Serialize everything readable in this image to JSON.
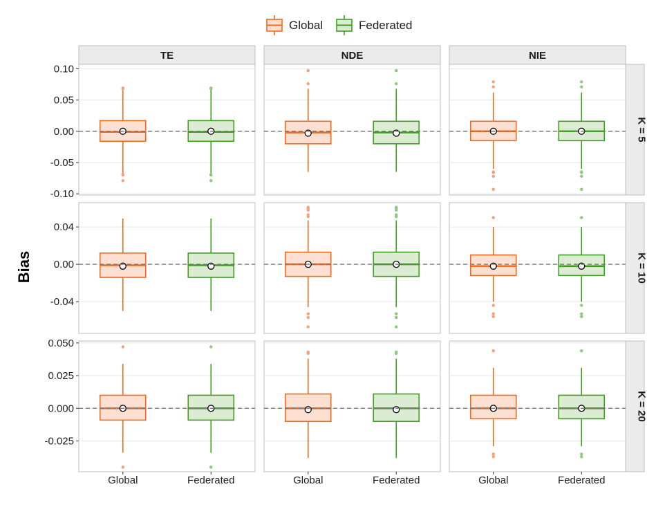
{
  "chart_data": {
    "type": "boxplot",
    "ylabel": "Bias",
    "legend": {
      "position": "top",
      "items": [
        {
          "label": "Global",
          "color": "#f26b1d",
          "fill": "#fde0d2"
        },
        {
          "label": "Federated",
          "color": "#3f9f1e",
          "fill": "#dcecd3"
        }
      ]
    },
    "columns": [
      "TE",
      "NDE",
      "NIE"
    ],
    "rows": [
      "K = 5",
      "K = 10",
      "K = 20"
    ],
    "categories": [
      "Global",
      "Federated"
    ],
    "reference_line": 0,
    "row_axes": [
      {
        "ylim": [
          -0.102,
          0.107
        ],
        "ticks": [
          0.1,
          0.05,
          0.0,
          -0.05,
          -0.1
        ],
        "tick_labels": [
          "0.10",
          "0.05",
          "0.00",
          "-0.05",
          "-0.10"
        ]
      },
      {
        "ylim": [
          -0.074,
          0.066
        ],
        "ticks": [
          0.04,
          0.0,
          -0.04
        ],
        "tick_labels": [
          "0.04",
          "0.00",
          "-0.04"
        ]
      },
      {
        "ylim": [
          -0.0485,
          0.0515
        ],
        "ticks": [
          0.05,
          0.025,
          0.0,
          -0.025
        ],
        "tick_labels": [
          "0.050",
          "0.025",
          "0.000",
          "-0.025"
        ]
      }
    ],
    "panels": [
      {
        "column": "TE",
        "row": "K = 5",
        "boxes": [
          {
            "group": "Global",
            "whisker_low": -0.067,
            "q1": -0.016,
            "median": -0.001,
            "mean": 0.0,
            "q3": 0.017,
            "whisker_high": 0.067,
            "outliers": [
              0.068,
              0.069,
              -0.069,
              -0.07,
              -0.079
            ]
          },
          {
            "group": "Federated",
            "whisker_low": -0.067,
            "q1": -0.016,
            "median": -0.001,
            "mean": 0.0,
            "q3": 0.017,
            "whisker_high": 0.067,
            "outliers": [
              0.068,
              0.069,
              -0.069,
              -0.07,
              -0.079
            ]
          }
        ]
      },
      {
        "column": "NDE",
        "row": "K = 5",
        "boxes": [
          {
            "group": "Global",
            "whisker_low": -0.065,
            "q1": -0.02,
            "median": -0.002,
            "mean": -0.003,
            "q3": 0.016,
            "whisker_high": 0.068,
            "outliers": [
              0.097,
              0.076
            ]
          },
          {
            "group": "Federated",
            "whisker_low": -0.065,
            "q1": -0.02,
            "median": -0.002,
            "mean": -0.003,
            "q3": 0.016,
            "whisker_high": 0.068,
            "outliers": [
              0.097,
              0.076
            ]
          }
        ]
      },
      {
        "column": "NIE",
        "row": "K = 5",
        "boxes": [
          {
            "group": "Global",
            "whisker_low": -0.06,
            "q1": -0.015,
            "median": 0.0,
            "mean": 0.0,
            "q3": 0.016,
            "whisker_high": 0.062,
            "outliers": [
              0.079,
              0.071,
              -0.065,
              -0.066,
              -0.072,
              -0.093
            ]
          },
          {
            "group": "Federated",
            "whisker_low": -0.06,
            "q1": -0.015,
            "median": 0.0,
            "mean": 0.0,
            "q3": 0.016,
            "whisker_high": 0.062,
            "outliers": [
              0.079,
              0.071,
              -0.065,
              -0.066,
              -0.072,
              -0.093
            ]
          }
        ]
      },
      {
        "column": "TE",
        "row": "K = 10",
        "boxes": [
          {
            "group": "Global",
            "whisker_low": -0.05,
            "q1": -0.014,
            "median": -0.001,
            "mean": -0.002,
            "q3": 0.012,
            "whisker_high": 0.049,
            "outliers": []
          },
          {
            "group": "Federated",
            "whisker_low": -0.05,
            "q1": -0.014,
            "median": -0.001,
            "mean": -0.002,
            "q3": 0.012,
            "whisker_high": 0.049,
            "outliers": []
          }
        ]
      },
      {
        "column": "NDE",
        "row": "K = 10",
        "boxes": [
          {
            "group": "Global",
            "whisker_low": -0.046,
            "q1": -0.013,
            "median": 0.0,
            "mean": 0.0,
            "q3": 0.013,
            "whisker_high": 0.047,
            "outliers": [
              0.061,
              0.06,
              0.058,
              0.053,
              0.051,
              -0.053,
              -0.057,
              -0.067
            ]
          },
          {
            "group": "Federated",
            "whisker_low": -0.046,
            "q1": -0.013,
            "median": 0.0,
            "mean": 0.0,
            "q3": 0.013,
            "whisker_high": 0.047,
            "outliers": [
              0.061,
              0.06,
              0.058,
              0.053,
              0.051,
              -0.053,
              -0.057,
              -0.067
            ]
          }
        ]
      },
      {
        "column": "NIE",
        "row": "K = 10",
        "boxes": [
          {
            "group": "Global",
            "whisker_low": -0.04,
            "q1": -0.012,
            "median": -0.002,
            "mean": -0.002,
            "q3": 0.01,
            "whisker_high": 0.04,
            "outliers": [
              0.05,
              -0.044,
              -0.053,
              -0.056
            ]
          },
          {
            "group": "Federated",
            "whisker_low": -0.04,
            "q1": -0.012,
            "median": -0.002,
            "mean": -0.002,
            "q3": 0.01,
            "whisker_high": 0.04,
            "outliers": [
              0.05,
              -0.044,
              -0.053,
              -0.056
            ]
          }
        ]
      },
      {
        "column": "TE",
        "row": "K = 20",
        "boxes": [
          {
            "group": "Global",
            "whisker_low": -0.034,
            "q1": -0.009,
            "median": 0.0,
            "mean": 0.0,
            "q3": 0.01,
            "whisker_high": 0.034,
            "outliers": [
              0.047,
              -0.045
            ]
          },
          {
            "group": "Federated",
            "whisker_low": -0.034,
            "q1": -0.009,
            "median": 0.0,
            "mean": 0.0,
            "q3": 0.01,
            "whisker_high": 0.034,
            "outliers": [
              0.047,
              -0.045
            ]
          }
        ]
      },
      {
        "column": "NDE",
        "row": "K = 20",
        "boxes": [
          {
            "group": "Global",
            "whisker_low": -0.038,
            "q1": -0.01,
            "median": 0.0,
            "mean": -0.001,
            "q3": 0.011,
            "whisker_high": 0.038,
            "outliers": [
              0.043,
              0.042
            ]
          },
          {
            "group": "Federated",
            "whisker_low": -0.038,
            "q1": -0.01,
            "median": 0.0,
            "mean": -0.001,
            "q3": 0.011,
            "whisker_high": 0.038,
            "outliers": [
              0.043,
              0.042
            ]
          }
        ]
      },
      {
        "column": "NIE",
        "row": "K = 20",
        "boxes": [
          {
            "group": "Global",
            "whisker_low": -0.029,
            "q1": -0.008,
            "median": 0.0,
            "mean": 0.0,
            "q3": 0.01,
            "whisker_high": 0.031,
            "outliers": [
              0.044,
              -0.035,
              -0.037
            ]
          },
          {
            "group": "Federated",
            "whisker_low": -0.029,
            "q1": -0.008,
            "median": 0.0,
            "mean": 0.0,
            "q3": 0.01,
            "whisker_high": 0.031,
            "outliers": [
              0.044,
              -0.035,
              -0.037
            ]
          }
        ]
      }
    ]
  }
}
